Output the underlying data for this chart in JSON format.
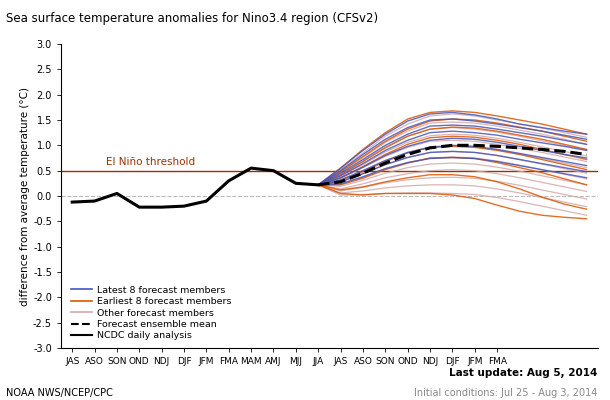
{
  "title": "Sea surface temperature anomalies for Nino3.4 region (CFSv2)",
  "ylabel": "difference from average temperature (°C)",
  "ylim": [
    -3.0,
    3.0
  ],
  "yticks": [
    -3.0,
    -2.5,
    -2.0,
    -1.5,
    -1.0,
    -0.5,
    0.0,
    0.5,
    1.0,
    1.5,
    2.0,
    2.5,
    3.0
  ],
  "xtick_labels_hist": [
    "JAS",
    "ASO",
    "SON",
    "OND",
    "NDJ",
    "DJF",
    "JFM",
    "FMA",
    "MAM",
    "AMJ",
    "MJJ",
    "JJA"
  ],
  "xtick_labels_fcst": [
    "JAS",
    "ASO",
    "SON",
    "OND",
    "NDJ",
    "DJF",
    "JFM",
    "FMA"
  ],
  "el_nino_threshold": 0.5,
  "el_nino_label": "El Niño threshold",
  "footer_left": "NOAA NWS/NCEP/CPC",
  "footer_right1": "Last update: Aug 5, 2014",
  "footer_right2": "Initial conditions: Jul 25 - Aug 3, 2014",
  "ncdc_analysis": [
    -0.12,
    -0.1,
    0.05,
    -0.22,
    -0.22,
    -0.2,
    -0.1,
    0.3,
    0.55,
    0.5,
    0.25,
    0.22
  ],
  "ensemble_mean": [
    0.22,
    0.28,
    0.45,
    0.65,
    0.82,
    0.95,
    1.0,
    1.0,
    0.98,
    0.95,
    0.92,
    0.88,
    0.82
  ],
  "latest_8": [
    [
      0.22,
      0.55,
      0.9,
      1.22,
      1.48,
      1.62,
      1.65,
      1.6,
      1.52,
      1.42,
      1.35,
      1.28,
      1.22
    ],
    [
      0.22,
      0.5,
      0.82,
      1.12,
      1.35,
      1.5,
      1.52,
      1.48,
      1.42,
      1.35,
      1.28,
      1.2,
      1.12
    ],
    [
      0.22,
      0.45,
      0.72,
      1.0,
      1.22,
      1.38,
      1.4,
      1.38,
      1.32,
      1.25,
      1.18,
      1.1,
      1.02
    ],
    [
      0.22,
      0.4,
      0.64,
      0.9,
      1.1,
      1.25,
      1.28,
      1.25,
      1.2,
      1.12,
      1.05,
      0.98,
      0.9
    ],
    [
      0.22,
      0.36,
      0.57,
      0.8,
      0.98,
      1.1,
      1.14,
      1.12,
      1.06,
      0.98,
      0.9,
      0.82,
      0.75
    ],
    [
      0.22,
      0.32,
      0.5,
      0.7,
      0.86,
      0.96,
      1.0,
      0.98,
      0.92,
      0.84,
      0.76,
      0.68,
      0.6
    ],
    [
      0.22,
      0.28,
      0.44,
      0.62,
      0.76,
      0.86,
      0.88,
      0.86,
      0.8,
      0.72,
      0.64,
      0.56,
      0.48
    ],
    [
      0.22,
      0.24,
      0.38,
      0.54,
      0.66,
      0.74,
      0.76,
      0.74,
      0.68,
      0.6,
      0.52,
      0.44,
      0.36
    ]
  ],
  "earliest_8": [
    [
      0.22,
      0.55,
      0.92,
      1.25,
      1.52,
      1.65,
      1.68,
      1.65,
      1.58,
      1.5,
      1.42,
      1.32,
      1.22
    ],
    [
      0.22,
      0.48,
      0.78,
      1.08,
      1.32,
      1.48,
      1.52,
      1.5,
      1.44,
      1.36,
      1.28,
      1.18,
      1.08
    ],
    [
      0.22,
      0.42,
      0.68,
      0.95,
      1.18,
      1.32,
      1.36,
      1.34,
      1.28,
      1.2,
      1.12,
      1.02,
      0.92
    ],
    [
      0.22,
      0.36,
      0.58,
      0.82,
      1.02,
      1.15,
      1.18,
      1.16,
      1.1,
      1.02,
      0.92,
      0.82,
      0.72
    ],
    [
      0.22,
      0.3,
      0.48,
      0.68,
      0.85,
      0.96,
      0.98,
      0.96,
      0.9,
      0.82,
      0.72,
      0.62,
      0.52
    ],
    [
      0.22,
      0.22,
      0.35,
      0.52,
      0.65,
      0.75,
      0.76,
      0.74,
      0.66,
      0.56,
      0.46,
      0.34,
      0.22
    ],
    [
      0.22,
      0.12,
      0.18,
      0.28,
      0.36,
      0.42,
      0.42,
      0.38,
      0.28,
      0.14,
      -0.02,
      -0.16,
      -0.26
    ],
    [
      0.22,
      0.05,
      0.02,
      0.05,
      0.05,
      0.05,
      0.02,
      -0.05,
      -0.18,
      -0.3,
      -0.38,
      -0.42,
      -0.45
    ]
  ],
  "other_members": [
    [
      0.22,
      0.52,
      0.85,
      1.18,
      1.42,
      1.58,
      1.62,
      1.58,
      1.5,
      1.42,
      1.34,
      1.25,
      1.16
    ],
    [
      0.22,
      0.47,
      0.76,
      1.06,
      1.28,
      1.44,
      1.46,
      1.44,
      1.38,
      1.3,
      1.22,
      1.12,
      1.02
    ],
    [
      0.22,
      0.43,
      0.69,
      0.97,
      1.18,
      1.32,
      1.35,
      1.32,
      1.26,
      1.18,
      1.09,
      1.0,
      0.91
    ],
    [
      0.22,
      0.39,
      0.62,
      0.87,
      1.06,
      1.19,
      1.22,
      1.2,
      1.14,
      1.06,
      0.97,
      0.88,
      0.79
    ],
    [
      0.22,
      0.35,
      0.56,
      0.78,
      0.96,
      1.08,
      1.1,
      1.08,
      1.02,
      0.94,
      0.86,
      0.77,
      0.68
    ],
    [
      0.22,
      0.31,
      0.5,
      0.7,
      0.86,
      0.97,
      0.99,
      0.97,
      0.91,
      0.83,
      0.74,
      0.65,
      0.56
    ],
    [
      0.22,
      0.27,
      0.44,
      0.62,
      0.76,
      0.86,
      0.88,
      0.86,
      0.8,
      0.72,
      0.63,
      0.54,
      0.45
    ],
    [
      0.22,
      0.23,
      0.37,
      0.54,
      0.66,
      0.75,
      0.77,
      0.75,
      0.69,
      0.61,
      0.52,
      0.43,
      0.34
    ],
    [
      0.22,
      0.19,
      0.31,
      0.45,
      0.56,
      0.63,
      0.65,
      0.63,
      0.57,
      0.49,
      0.4,
      0.31,
      0.22
    ],
    [
      0.22,
      0.14,
      0.24,
      0.36,
      0.44,
      0.5,
      0.52,
      0.5,
      0.44,
      0.36,
      0.27,
      0.18,
      0.09
    ],
    [
      0.22,
      0.1,
      0.17,
      0.26,
      0.32,
      0.36,
      0.37,
      0.35,
      0.29,
      0.21,
      0.12,
      0.03,
      -0.06
    ],
    [
      0.22,
      0.06,
      0.1,
      0.16,
      0.2,
      0.22,
      0.22,
      0.2,
      0.14,
      0.06,
      -0.03,
      -0.12,
      -0.21
    ],
    [
      0.22,
      0.02,
      0.03,
      0.05,
      0.06,
      0.06,
      0.05,
      0.03,
      -0.03,
      -0.11,
      -0.2,
      -0.29,
      -0.38
    ]
  ],
  "color_latest": "#4455bb",
  "color_earliest": "#dd5500",
  "color_other": "#d4a8a8",
  "color_ensemble": "#000000",
  "color_ncdc": "#000000",
  "color_elnino": "#993300",
  "color_zero_line": "#bbbbbb",
  "background_color": "#ffffff"
}
